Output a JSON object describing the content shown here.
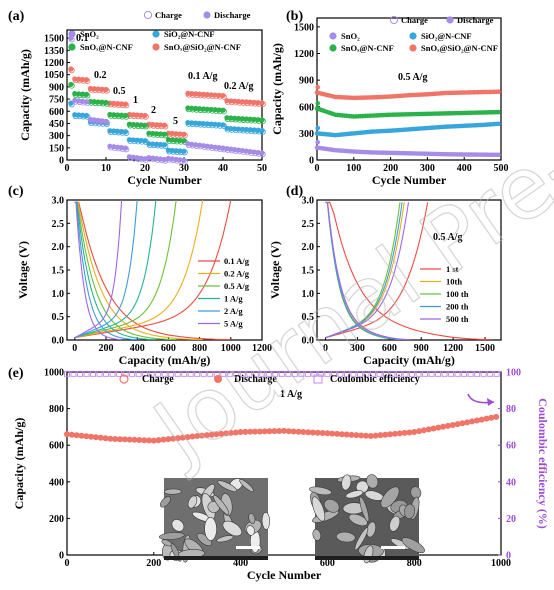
{
  "figure": {
    "watermark": "Journal Pre-proof",
    "panels": {
      "a": "(a)",
      "b": "(b)",
      "c": "(c)",
      "d": "(d)",
      "e": "(e)"
    },
    "legend_common": {
      "charge": "Charge",
      "discharge": "Discharge",
      "coulombic": "Coulombic efficiency"
    },
    "materials": [
      "SnO₂",
      "SiO₂@N-CNF",
      "SnOₓ@N-CNF",
      "SnOₓ@SiO₂@N-CNF"
    ],
    "rates_a": [
      "0.1",
      "0.2",
      "0.5",
      "1",
      "2",
      "5",
      "0.1 A/g",
      "0.2 A/g"
    ],
    "rate_b": "0.5 A/g",
    "rate_d": "0.5 A/g",
    "rate_e": "1 A/g",
    "sem_scale": "1 μm"
  },
  "chart_data": [
    {
      "id": "a",
      "type": "scatter",
      "xlabel": "Cycle Number",
      "ylabel": "Capacity (mAh/g)",
      "xlim": [
        0,
        50
      ],
      "ylim": [
        0,
        1600
      ],
      "xticks": [
        0,
        10,
        20,
        30,
        40,
        50
      ],
      "yticks": [
        0,
        150,
        300,
        450,
        600,
        750,
        900,
        1050,
        1200,
        1350,
        1500
      ],
      "series": [
        {
          "name": "SnOₓ@SiO₂@N-CNF",
          "color": "#f07468",
          "stages": [
            1000,
            880,
            700,
            560,
            440,
            330,
            820,
            730
          ],
          "first": 1120
        },
        {
          "name": "SnOₓ@N-CNF",
          "color": "#2bb24a",
          "stages": [
            820,
            720,
            560,
            440,
            330,
            250,
            640,
            520
          ],
          "first": 930
        },
        {
          "name": "SiO₂@N-CNF",
          "color": "#36a6dd",
          "stages": [
            560,
            470,
            360,
            250,
            200,
            120,
            460,
            390
          ],
          "first": 700
        },
        {
          "name": "SnO₂",
          "color": "#a58ce8",
          "stages": [
            740,
            500,
            170,
            40,
            30,
            20,
            200,
            140
          ],
          "first": 1500
        }
      ]
    },
    {
      "id": "b",
      "type": "scatter",
      "xlabel": "Cycle Number",
      "ylabel": "Capacity (mAh/g)",
      "xlim": [
        0,
        500
      ],
      "ylim": [
        0,
        1600
      ],
      "xticks": [
        0,
        100,
        200,
        300,
        400,
        500
      ],
      "yticks": [
        0,
        300,
        600,
        900,
        1200,
        1500
      ],
      "series": [
        {
          "name": "SnOₓ@SiO₂@N-CNF",
          "color": "#f07468",
          "x": [
            0,
            50,
            100,
            150,
            200,
            250,
            300,
            350,
            400,
            450,
            500
          ],
          "y": [
            760,
            710,
            700,
            705,
            715,
            730,
            740,
            755,
            760,
            765,
            770
          ]
        },
        {
          "name": "SnOₓ@N-CNF",
          "color": "#2bb24a",
          "x": [
            0,
            50,
            100,
            150,
            200,
            250,
            300,
            350,
            400,
            450,
            500
          ],
          "y": [
            580,
            510,
            490,
            500,
            510,
            515,
            520,
            525,
            530,
            535,
            540
          ]
        },
        {
          "name": "SiO₂@N-CNF",
          "color": "#36a6dd",
          "x": [
            0,
            50,
            100,
            150,
            200,
            250,
            300,
            350,
            400,
            450,
            500
          ],
          "y": [
            300,
            280,
            300,
            320,
            330,
            345,
            360,
            375,
            385,
            395,
            410
          ]
        },
        {
          "name": "SnO₂",
          "color": "#a58ce8",
          "x": [
            0,
            50,
            100,
            150,
            200,
            250,
            300,
            350,
            400,
            450,
            500
          ],
          "y": [
            140,
            110,
            95,
            85,
            80,
            75,
            70,
            65,
            62,
            60,
            58
          ]
        }
      ]
    },
    {
      "id": "c",
      "type": "line",
      "xlabel": "Capacity (mAh/g)",
      "ylabel": "Voltage (V)",
      "xlim": [
        -50,
        1200
      ],
      "ylim": [
        0,
        3.0
      ],
      "xticks": [
        0,
        200,
        400,
        600,
        800,
        1000,
        1200
      ],
      "yticks": [
        0.0,
        0.5,
        1.0,
        1.5,
        2.0,
        2.5,
        3.0
      ],
      "series": [
        {
          "name": "0.1 A/g",
          "color": "#ee4a42",
          "cap": 1000
        },
        {
          "name": "0.2 A/g",
          "color": "#e8b01c",
          "cap": 820
        },
        {
          "name": "0.5 A/g",
          "color": "#6cc13a",
          "cap": 650
        },
        {
          "name": "1 A/g",
          "color": "#25b493",
          "cap": 520
        },
        {
          "name": "2 A/g",
          "color": "#3f9be0",
          "cap": 400
        },
        {
          "name": "5 A/g",
          "color": "#a066e8",
          "cap": 300
        }
      ]
    },
    {
      "id": "d",
      "type": "line",
      "xlabel": "Capacity (mAh/g)",
      "ylabel": "Voltage (V)",
      "xlim": [
        -80,
        1650
      ],
      "ylim": [
        0,
        3.0
      ],
      "xticks": [
        0,
        300,
        600,
        900,
        1200,
        1500
      ],
      "yticks": [
        0.0,
        0.5,
        1.0,
        1.5,
        2.0,
        2.5,
        3.0
      ],
      "series": [
        {
          "name": "1 st",
          "color": "#ee4a42",
          "dis": 1560,
          "chg": 960
        },
        {
          "name": "10th",
          "color": "#e8b01c",
          "dis": 780,
          "chg": 740
        },
        {
          "name": "100 th",
          "color": "#6cc13a",
          "dis": 720,
          "chg": 700
        },
        {
          "name": "200 th",
          "color": "#3f9be0",
          "dis": 740,
          "chg": 720
        },
        {
          "name": "500 th",
          "color": "#a066e8",
          "dis": 800,
          "chg": 780
        }
      ]
    },
    {
      "id": "e",
      "type": "scatter",
      "xlabel": "Cycle Number",
      "ylabel": "Capacity (mAh/g)",
      "y2label": "Coulombic efficiency (%)",
      "xlim": [
        0,
        1000
      ],
      "ylim": [
        0,
        1000
      ],
      "y2lim": [
        0,
        100
      ],
      "xticks": [
        0,
        200,
        400,
        600,
        800,
        1000
      ],
      "yticks": [
        0,
        200,
        400,
        600,
        800,
        1000
      ],
      "y2ticks": [
        0,
        20,
        40,
        60,
        80,
        100
      ],
      "capacity": {
        "x": [
          0,
          100,
          200,
          300,
          400,
          500,
          600,
          700,
          800,
          900,
          1000
        ],
        "y": [
          660,
          635,
          625,
          650,
          672,
          678,
          665,
          650,
          672,
          715,
          760
        ]
      },
      "coulombic": {
        "x": [
          0,
          1000
        ],
        "y": [
          99,
          99
        ]
      }
    }
  ]
}
